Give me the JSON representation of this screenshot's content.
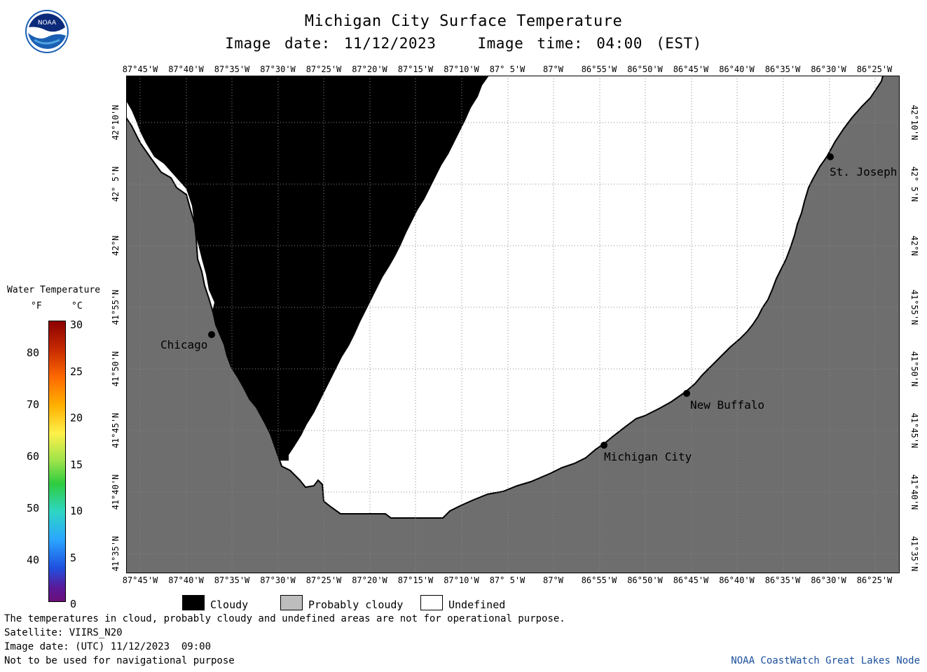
{
  "header": {
    "title": "Michigan City Surface Temperature",
    "image_date": "Image date: 11/12/2023",
    "image_time": "Image time: 04:00 (EST)"
  },
  "logo": {
    "text": "NOAA"
  },
  "map": {
    "lon_ticks": [
      "87°45'W",
      "87°40'W",
      "87°35'W",
      "87°30'W",
      "87°25'W",
      "87°20'W",
      "87°15'W",
      "87°10'W",
      "87° 5'W",
      "87°W",
      "86°55'W",
      "86°50'W",
      "86°45'W",
      "86°40'W",
      "86°35'W",
      "86°30'W",
      "86°25'W"
    ],
    "lat_ticks": [
      "42°10'N",
      "42° 5'N",
      "42°N",
      "41°55'N",
      "41°50'N",
      "41°45'N",
      "41°40'N",
      "41°35'N"
    ],
    "cities": [
      {
        "name": "Chicago"
      },
      {
        "name": "St. Joseph"
      },
      {
        "name": "New Buffalo"
      },
      {
        "name": "Michigan City"
      }
    ],
    "colors": {
      "land": "#6e6e6e",
      "cloudy": "#000000",
      "undefined": "#ffffff",
      "grid": "#8a8a8a"
    }
  },
  "colorbar": {
    "title": "Water Temperature",
    "unit_f": "°F",
    "unit_c": "°C",
    "f_ticks": [
      "80",
      "70",
      "60",
      "50",
      "40"
    ],
    "c_ticks": [
      "30",
      "25",
      "20",
      "15",
      "10",
      "5",
      "0"
    ]
  },
  "legend": {
    "cloudy": "Cloudy",
    "probably_cloudy": "Probably cloudy",
    "undefined": "Undefined"
  },
  "notes": {
    "line1": "The temperatures in cloud, probably cloudy and undefined areas are not for operational purpose.",
    "line2": "Satellite: VIIRS_N20",
    "line3": "Image date: (UTC) 11/12/2023  09:00",
    "line4": "Not to be used for navigational purpose",
    "credit": "NOAA CoastWatch Great Lakes Node"
  }
}
